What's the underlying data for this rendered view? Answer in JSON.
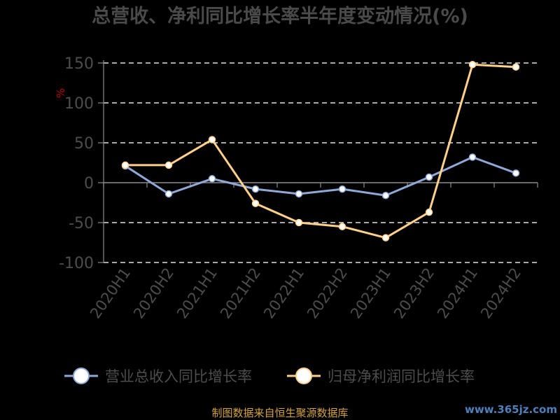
{
  "chart_data": {
    "type": "line",
    "title": "总营收、净利同比增长率半年度变动情况(%)",
    "ylabel": "%",
    "categories": [
      "2020H1",
      "2020H2",
      "2021H1",
      "2021H2",
      "2022H1",
      "2022H2",
      "2023H1",
      "2023H2",
      "2024H1",
      "2024H2"
    ],
    "ylim": [
      -100,
      150
    ],
    "yticks": [
      150,
      100,
      50,
      0,
      -50,
      -100
    ],
    "grid": true,
    "legend_position": "bottom",
    "series": [
      {
        "name": "营业总收入同比增长率",
        "color": "#8fa8d8",
        "values": [
          21,
          -14,
          5,
          -8,
          -14,
          -8,
          -16,
          7,
          32,
          12
        ]
      },
      {
        "name": "归母净利润同比增长率",
        "color": "#ffd08a",
        "values": [
          22,
          22,
          54,
          -26,
          -50,
          -55,
          -69,
          -37,
          148,
          145
        ]
      }
    ]
  },
  "source": "制图数据来自恒生聚源数据库",
  "watermark": "www.365jz.com"
}
